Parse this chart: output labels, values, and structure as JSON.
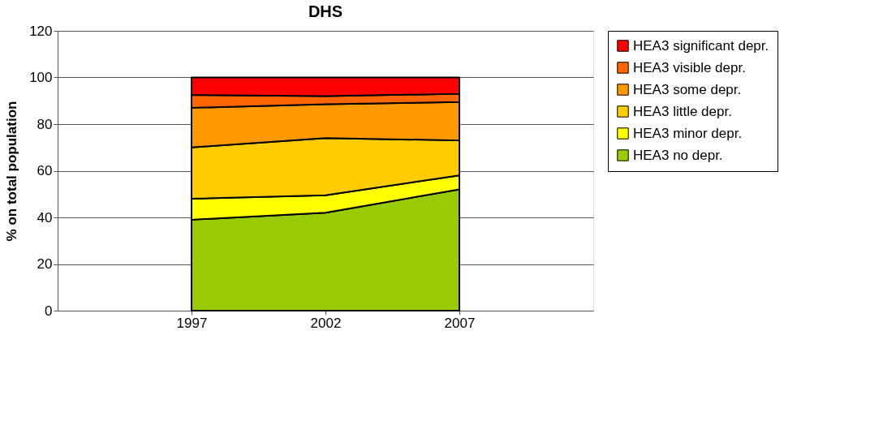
{
  "chart_data": {
    "type": "area",
    "title": "DHS",
    "ylabel": "% on total population",
    "categories": [
      "1997",
      "2002",
      "2007"
    ],
    "stacked": true,
    "series": [
      {
        "name": "HEA3 no depr.",
        "color": "#99cc00",
        "values": [
          39,
          42,
          52
        ]
      },
      {
        "name": "HEA3 minor depr.",
        "color": "#ffff00",
        "values": [
          9,
          7.5,
          6
        ]
      },
      {
        "name": "HEA3 little depr.",
        "color": "#ffcc00",
        "values": [
          22,
          24.5,
          15
        ]
      },
      {
        "name": "HEA3 some depr.",
        "color": "#ff9900",
        "values": [
          17,
          14.5,
          16.5
        ]
      },
      {
        "name": "HEA3 visible depr.",
        "color": "#ff6600",
        "values": [
          5.5,
          3.5,
          3.5
        ]
      },
      {
        "name": "HEA3 significant depr.",
        "color": "#ff0000",
        "values": [
          7.5,
          8,
          7
        ]
      }
    ],
    "ylim": [
      0,
      120
    ],
    "yticks": [
      0,
      20,
      40,
      60,
      80,
      100,
      120
    ],
    "grid": "y",
    "legend": "right"
  }
}
